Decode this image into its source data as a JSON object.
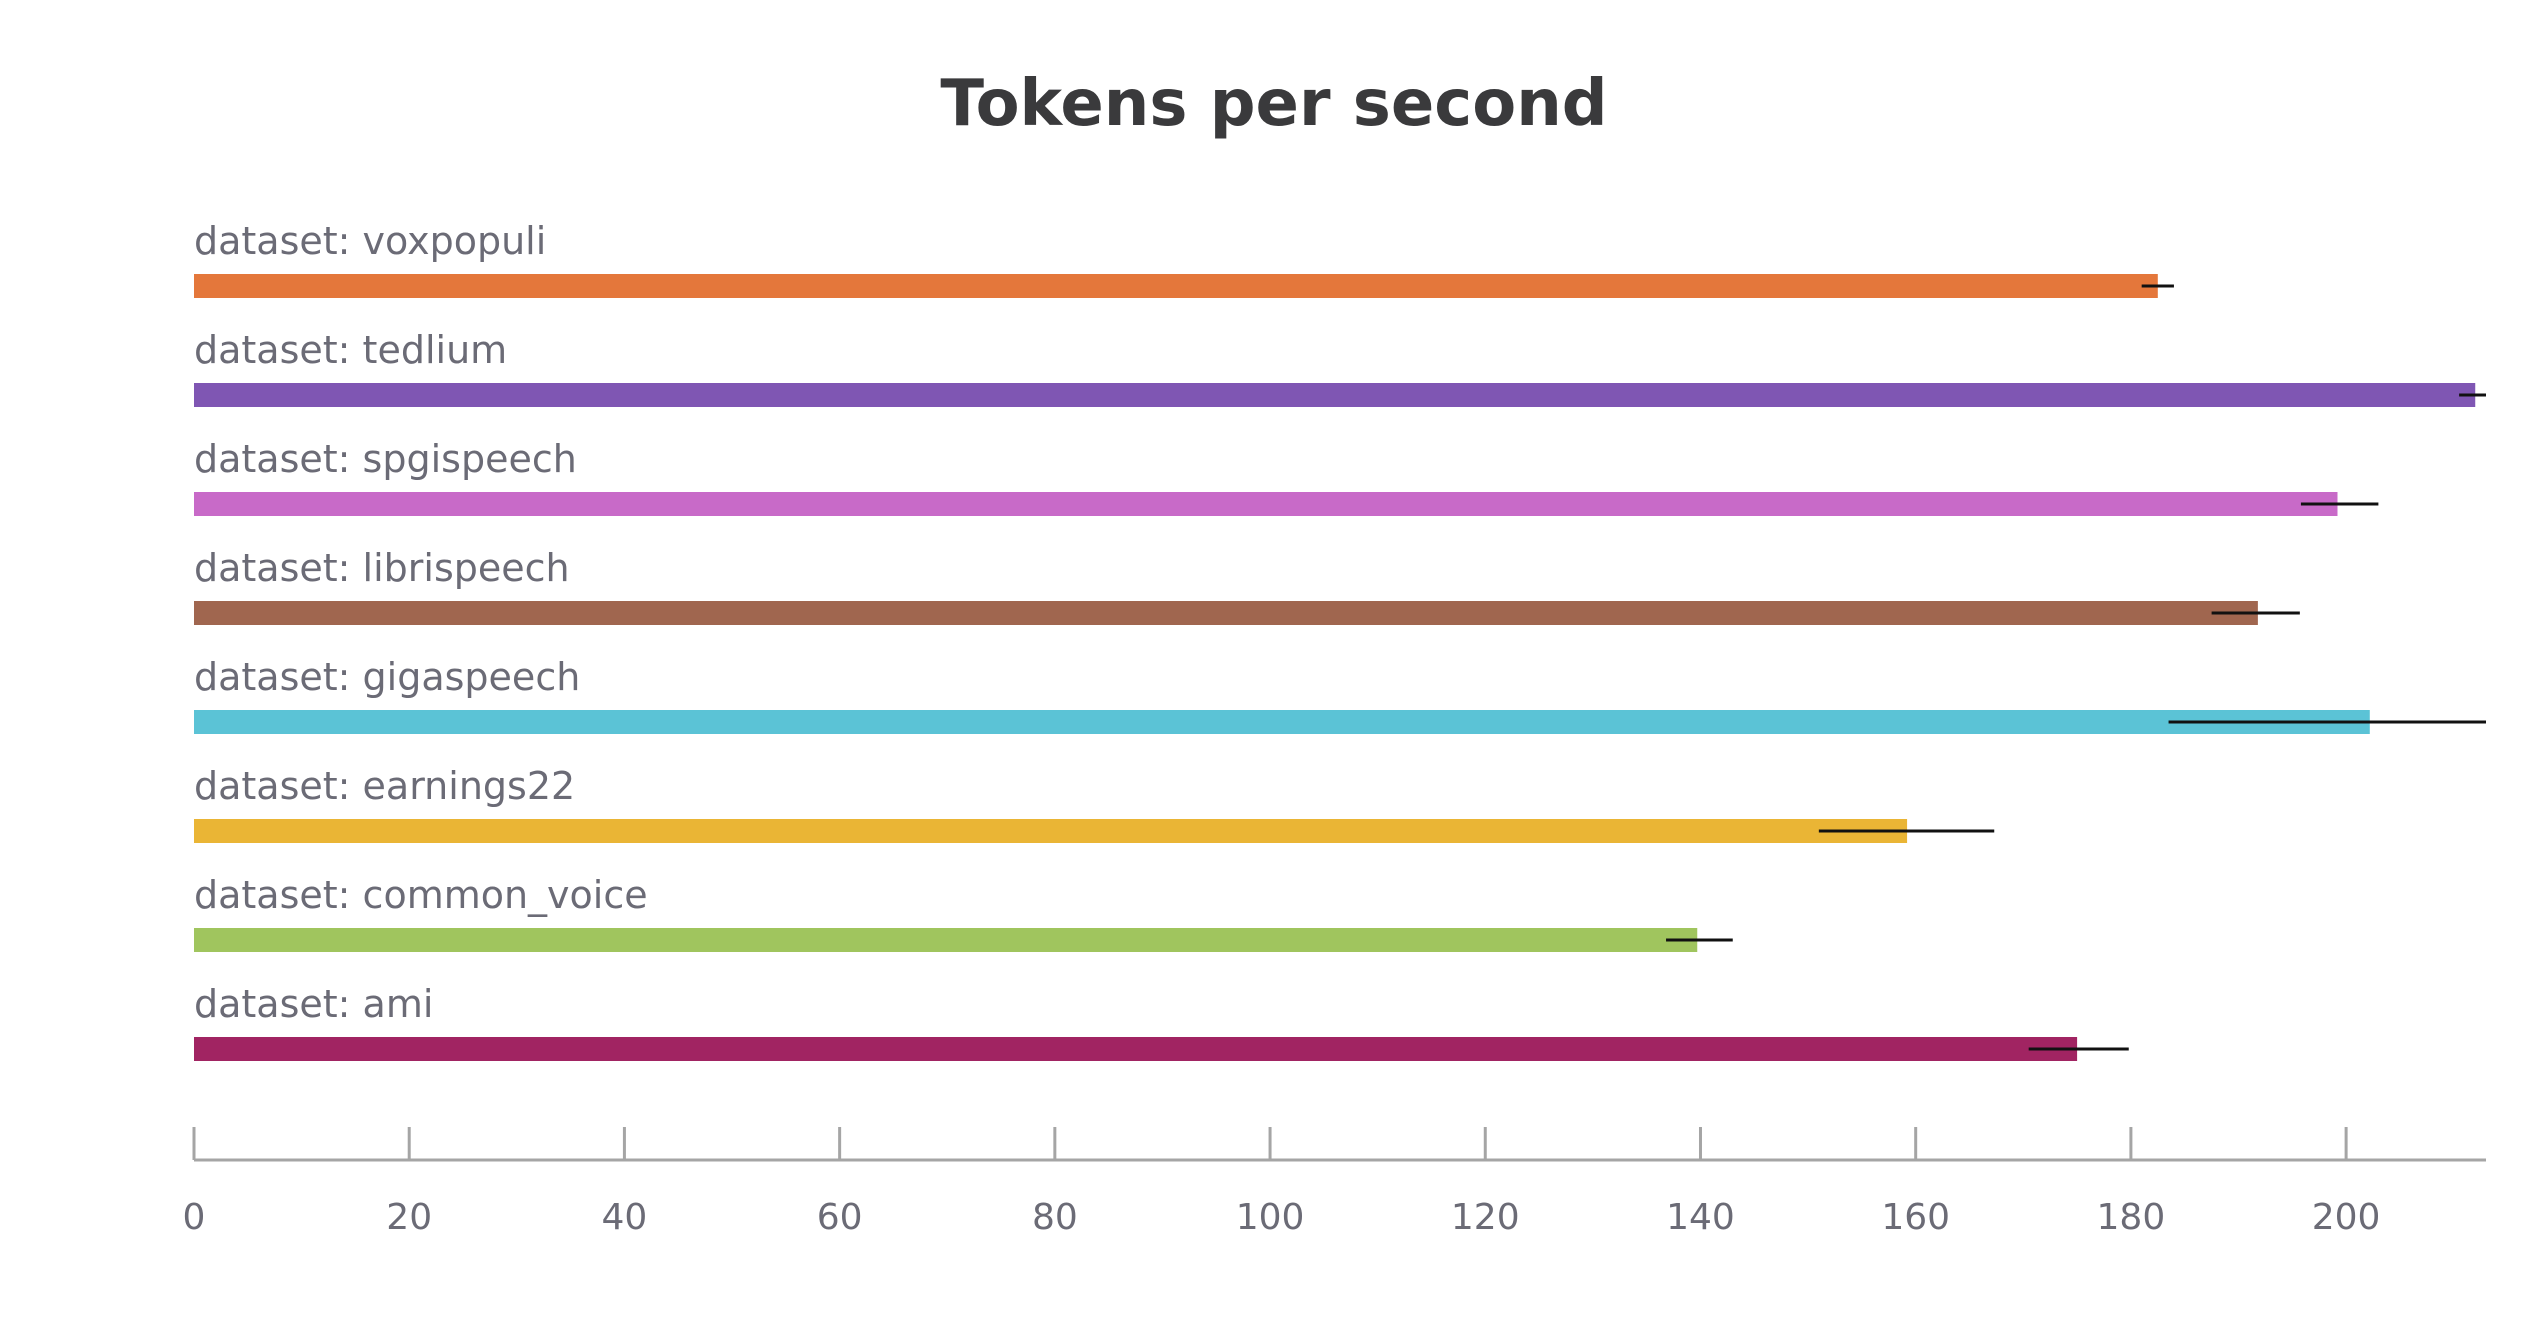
{
  "chart_data": {
    "type": "bar",
    "orientation": "horizontal",
    "title": "Tokens per second",
    "xlabel": "",
    "ylabel": "",
    "xlim": [
      0,
      213
    ],
    "xticks": [
      0,
      20,
      40,
      60,
      80,
      100,
      120,
      140,
      160,
      180,
      200
    ],
    "grid": false,
    "legend": "none",
    "categories": [
      "dataset: voxpopuli",
      "dataset: tedlium",
      "dataset: spgispeech",
      "dataset: librispeech",
      "dataset: gigaspeech",
      "dataset: earnings22",
      "dataset: common_voice",
      "dataset: ami"
    ],
    "values": [
      182.5,
      212.0,
      199.2,
      191.8,
      202.2,
      159.2,
      139.7,
      175.0
    ],
    "error_low": [
      181.0,
      210.5,
      195.8,
      187.5,
      183.5,
      151.0,
      136.8,
      170.5
    ],
    "error_high": [
      184.0,
      213.0,
      203.0,
      195.7,
      213.0,
      167.3,
      143.0,
      179.8
    ],
    "colors": [
      "#e4773b",
      "#7f56b3",
      "#c86ac8",
      "#a0664f",
      "#5bc3d6",
      "#eab535",
      "#a0c55e",
      "#a12462"
    ]
  }
}
